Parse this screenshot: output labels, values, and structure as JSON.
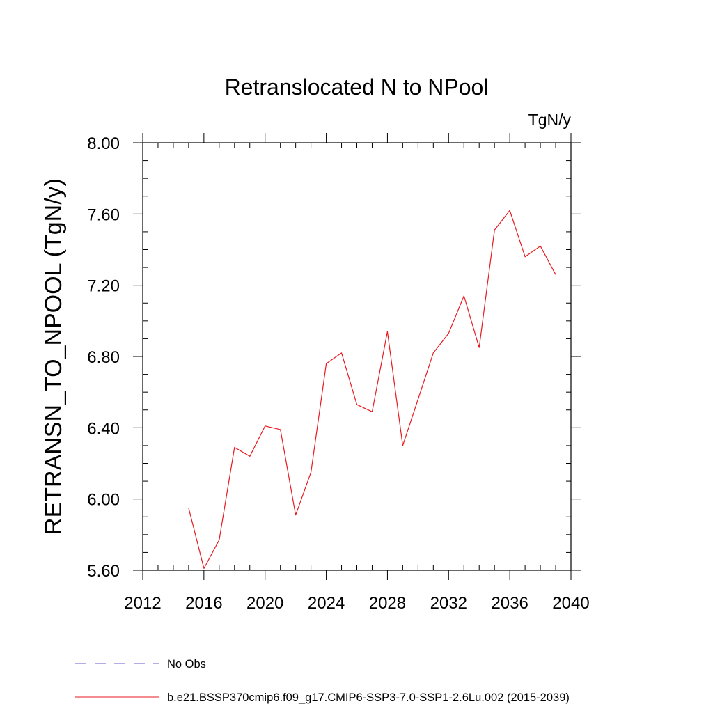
{
  "chart_data": {
    "type": "line",
    "title": "Retranslocated N to NPool",
    "units_label": "TgN/y",
    "ylabel": "RETRANSN_TO_NPOOL  (TgN/y)",
    "xlabel": "",
    "xlim": [
      2012,
      2040
    ],
    "ylim": [
      5.6,
      8.0
    ],
    "x_ticks": [
      2012,
      2016,
      2020,
      2024,
      2028,
      2032,
      2036,
      2040
    ],
    "y_ticks": [
      "5.60",
      "6.00",
      "6.40",
      "6.80",
      "7.20",
      "7.60",
      "8.00"
    ],
    "grid": false,
    "legend_position": "bottom",
    "series": [
      {
        "name": "b.e21.BSSP370cmip6.f09_g17.CMIP6-SSP3-7.0-SSP1-2.6Lu.002 (2015-2039)",
        "color": "#e8191f",
        "style": "solid",
        "x": [
          2015,
          2016,
          2017,
          2018,
          2019,
          2020,
          2021,
          2022,
          2023,
          2024,
          2025,
          2026,
          2027,
          2028,
          2029,
          2030,
          2031,
          2032,
          2033,
          2034,
          2035,
          2036,
          2037,
          2038,
          2039
        ],
        "y": [
          5.95,
          5.61,
          5.77,
          6.29,
          6.24,
          6.41,
          6.39,
          5.91,
          6.15,
          6.76,
          6.82,
          6.53,
          6.49,
          6.94,
          6.3,
          6.56,
          6.82,
          6.93,
          7.14,
          6.85,
          7.51,
          7.62,
          7.36,
          7.42,
          7.26
        ]
      }
    ],
    "legend": [
      {
        "label": "No Obs",
        "color": "#6a5acd",
        "style": "dashed"
      },
      {
        "label": "b.e21.BSSP370cmip6.f09_g17.CMIP6-SSP3-7.0-SSP1-2.6Lu.002 (2015-2039)",
        "color": "#e8191f",
        "style": "solid"
      }
    ]
  }
}
